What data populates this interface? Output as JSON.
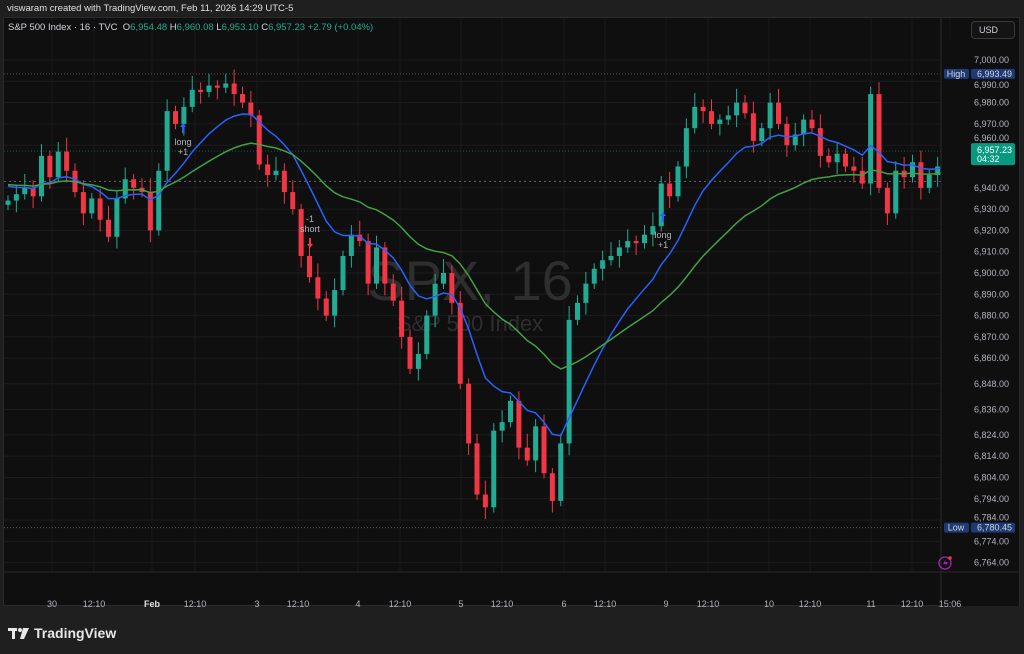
{
  "header": {
    "credit": "viswaram created with TradingView.com, Feb 11, 2026 14:29 UTC-5",
    "symbol": "S&P 500 Index · 16 · TVC",
    "open_label": "O",
    "open": "6,954.48",
    "high_label": "H",
    "high": "6,960.08",
    "low_label": "L",
    "low": "6,953.10",
    "close_label": "C",
    "close": "6,957.23",
    "change": "+2.79 (+0.04%)",
    "currency": "USD"
  },
  "watermark": {
    "line1": "SPX, 16",
    "line2": "S&P 500 Index"
  },
  "footer": {
    "brand": "TradingView"
  },
  "colors": {
    "up": "#22ab94",
    "down": "#f23645",
    "ma_fast": "#2962ff",
    "ma_slow": "#43a047",
    "label_blue": "#1e3a75",
    "last_price": "#089981",
    "alert": "#9c27b0"
  },
  "chart_data": {
    "type": "candlestick",
    "title": "S&P 500 Index · 16 · TVC",
    "y_ticks": [
      "7,000.00",
      "6,990.00",
      "6,980.00",
      "6,970.00",
      "6,960.00",
      "6,940.00",
      "6,930.00",
      "6,920.00",
      "6,910.00",
      "6,900.00",
      "6,890.00",
      "6,880.00",
      "6,870.00",
      "6,860.00",
      "6,848.00",
      "6,836.00",
      "6,824.00",
      "6,814.00",
      "6,804.00",
      "6,794.00",
      "6,784.00",
      "6,774.00",
      "6,764.00"
    ],
    "y_tick_values": [
      7000,
      6990,
      6980,
      6970,
      6960,
      6940,
      6930,
      6920,
      6910,
      6900,
      6890,
      6880,
      6870,
      6860,
      6848,
      6836,
      6824,
      6814,
      6804,
      6794,
      6784,
      6774,
      6764
    ],
    "ylim": [
      6759,
      7008
    ],
    "x_ticks": [
      "30",
      "12:10",
      "Feb",
      "12:10",
      "3",
      "12:10",
      "4",
      "12:10",
      "5",
      "12:10",
      "6",
      "12:10",
      "9",
      "12:10",
      "10",
      "12:10",
      "11",
      "12:10",
      "15:06"
    ],
    "closes": [
      6934,
      6937,
      6940,
      6936,
      6955,
      6945,
      6957,
      6948,
      6938,
      6928,
      6935,
      6925,
      6917,
      6935,
      6944,
      6940,
      6938,
      6920,
      6948,
      6976,
      6970,
      6978,
      6986,
      6985,
      6988,
      6987,
      6989,
      6984,
      6980,
      6974,
      6951,
      6946,
      6948,
      6938,
      6930,
      6908,
      6898,
      6888,
      6880,
      6892,
      6908,
      6918,
      6915,
      6895,
      6912,
      6895,
      6887,
      6870,
      6855,
      6862,
      6880,
      6895,
      6900,
      6886,
      6848,
      6820,
      6796,
      6790,
      6826,
      6830,
      6840,
      6818,
      6812,
      6828,
      6806,
      6793,
      6820,
      6878,
      6886,
      6895,
      6902,
      6906,
      6908,
      6912,
      6915,
      6914,
      6918,
      6922,
      6942,
      6936,
      6950,
      6968,
      6978,
      6976,
      6970,
      6972,
      6974,
      6980,
      6975,
      6962,
      6968,
      6980,
      6970,
      6960,
      6965,
      6972,
      6968,
      6955,
      6952,
      6956,
      6950,
      6948,
      6942,
      6984,
      6940,
      6928,
      6948,
      6945,
      6952,
      6940,
      6946,
      6950,
      6957.23
    ],
    "session_high": {
      "label": "High",
      "value": "6,993.49"
    },
    "session_low": {
      "label": "Low",
      "value": "6,780.45"
    },
    "last_price": {
      "value": "6,957.23",
      "countdown": "04:32"
    },
    "signals": [
      {
        "text1": "long",
        "text2": "+1",
        "direction": "up"
      },
      {
        "text1": "-1",
        "text2": "short",
        "direction": "down"
      },
      {
        "text1": "long",
        "text2": "+1",
        "direction": "up"
      }
    ],
    "moving_averages": [
      {
        "color": "#2962ff"
      },
      {
        "color": "#43a047"
      }
    ]
  }
}
